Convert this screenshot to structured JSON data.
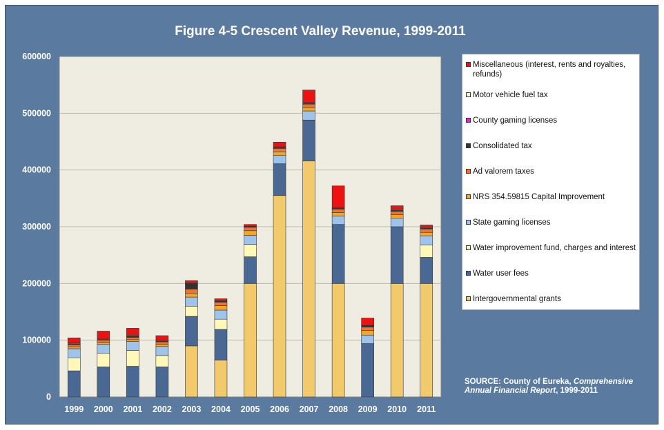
{
  "chart_data": {
    "type": "bar",
    "stacked": true,
    "title": "Figure 4-5 Crescent Valley  Revenue, 1999-2011",
    "xlabel": "",
    "ylabel": "",
    "ylim": [
      0,
      600000
    ],
    "yticks": [
      0,
      100000,
      200000,
      300000,
      400000,
      500000,
      600000
    ],
    "grid": true,
    "legend_position": "right",
    "categories": [
      "1999",
      "2000",
      "2001",
      "2002",
      "2003",
      "2004",
      "2005",
      "2006",
      "2007",
      "2008",
      "2009",
      "2010",
      "2011"
    ],
    "series": [
      {
        "name": "Intergovernmental grants",
        "color": "#f2c96b",
        "values": [
          0,
          0,
          0,
          0,
          90000,
          65000,
          200000,
          355000,
          416000,
          200000,
          0,
          200000,
          200000
        ]
      },
      {
        "name": "Water user fees",
        "color": "#4a6894",
        "values": [
          46000,
          53000,
          54000,
          53000,
          52000,
          54000,
          47000,
          56000,
          72000,
          104000,
          94000,
          100000,
          46000
        ]
      },
      {
        "name": "Water improvement fund, charges and interest",
        "color": "#fff8b8",
        "values": [
          23000,
          24000,
          28000,
          20000,
          18000,
          18000,
          22000,
          0,
          0,
          0,
          0,
          0,
          22000
        ]
      },
      {
        "name": "State gaming licenses",
        "color": "#9ec4ec",
        "values": [
          16000,
          16000,
          16000,
          16000,
          16000,
          16000,
          16000,
          15000,
          16000,
          15000,
          15000,
          15000,
          16000
        ]
      },
      {
        "name": "NRS 354.59815 Capital Improvement",
        "color": "#f5a623",
        "values": [
          3000,
          3000,
          3000,
          4000,
          6000,
          8000,
          8000,
          6000,
          6000,
          6000,
          8000,
          6000,
          6000
        ]
      },
      {
        "name": "Ad valorem taxes",
        "color": "#e8763a",
        "values": [
          4000,
          4000,
          4000,
          4000,
          8000,
          6000,
          6000,
          6000,
          6000,
          6000,
          6000,
          6000,
          6000
        ]
      },
      {
        "name": "Consolidated tax",
        "color": "#333333",
        "values": [
          2000,
          1000,
          3000,
          2000,
          10000,
          2000,
          2000,
          2000,
          2000,
          2000,
          3000,
          2000,
          2000
        ]
      },
      {
        "name": "County gaming licenses",
        "color": "#cc33cc",
        "values": [
          0,
          0,
          0,
          0,
          0,
          0,
          0,
          0,
          0,
          0,
          0,
          0,
          0
        ]
      },
      {
        "name": "Motor vehicle fuel tax",
        "color": "#fff6c8",
        "values": [
          1000,
          1000,
          1000,
          1000,
          1000,
          1000,
          1000,
          1000,
          1000,
          1000,
          1000,
          1000,
          1000
        ]
      },
      {
        "name": "Miscellaneous (interest, rents and royalties, refunds)",
        "color": "#ee1111",
        "values": [
          9000,
          14000,
          12000,
          8000,
          4000,
          3000,
          2000,
          8000,
          22000,
          38000,
          12000,
          7000,
          4000
        ]
      }
    ],
    "source": {
      "prefix": "SOURCE: County of Eureka, ",
      "italic": "Comprehensive Annual Financial Report",
      "suffix": ", 1999-2011"
    },
    "colors": {
      "frame_background": "#5b7aa0",
      "plot_background": "#efede1",
      "gridline": "#bdbab0"
    }
  }
}
